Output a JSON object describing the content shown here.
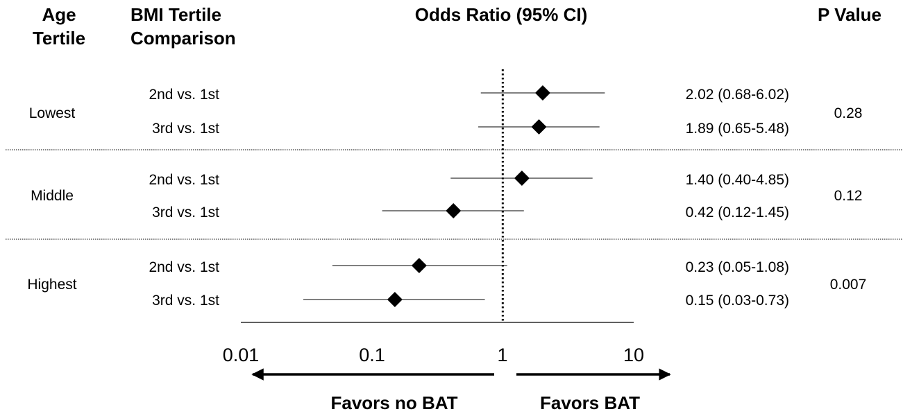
{
  "headers": {
    "age_line1": "Age",
    "age_line2": "Tertile",
    "bmi_line1": "BMI Tertile",
    "bmi_line2": "Comparison",
    "or": "Odds Ratio (95% CI)",
    "p": "P Value"
  },
  "groups": [
    {
      "label": "Lowest",
      "p_value": "0.28"
    },
    {
      "label": "Middle",
      "p_value": "0.12"
    },
    {
      "label": "Highest",
      "p_value": "0.007"
    }
  ],
  "direction_labels": {
    "left": "Favors no BAT",
    "right": "Favors BAT"
  },
  "colors": {
    "ink": "#000000",
    "background": "#ffffff"
  },
  "chart_data": {
    "type": "forest",
    "x_scale": "log",
    "xlim": [
      0.01,
      10
    ],
    "x_ticks": [
      {
        "value": 0.01,
        "label": "0.01"
      },
      {
        "value": 0.1,
        "label": "0.1"
      },
      {
        "value": 1,
        "label": "1"
      },
      {
        "value": 10,
        "label": "10"
      }
    ],
    "reference_line": 1,
    "rows": [
      {
        "group": "Lowest",
        "comparison": "2nd vs. 1st",
        "or": 2.02,
        "lo": 0.68,
        "hi": 6.02,
        "text": "2.02 (0.68-6.02)"
      },
      {
        "group": "Lowest",
        "comparison": "3rd vs. 1st",
        "or": 1.89,
        "lo": 0.65,
        "hi": 5.48,
        "text": "1.89 (0.65-5.48)"
      },
      {
        "group": "Middle",
        "comparison": "2nd vs. 1st",
        "or": 1.4,
        "lo": 0.4,
        "hi": 4.85,
        "text": "1.40 (0.40-4.85)"
      },
      {
        "group": "Middle",
        "comparison": "3rd vs. 1st",
        "or": 0.42,
        "lo": 0.12,
        "hi": 1.45,
        "text": "0.42 (0.12-1.45)"
      },
      {
        "group": "Highest",
        "comparison": "2nd vs. 1st",
        "or": 0.23,
        "lo": 0.05,
        "hi": 1.08,
        "text": "0.23 (0.05-1.08)"
      },
      {
        "group": "Highest",
        "comparison": "3rd vs. 1st",
        "or": 0.15,
        "lo": 0.03,
        "hi": 0.73,
        "text": "0.15 (0.03-0.73)"
      }
    ]
  }
}
